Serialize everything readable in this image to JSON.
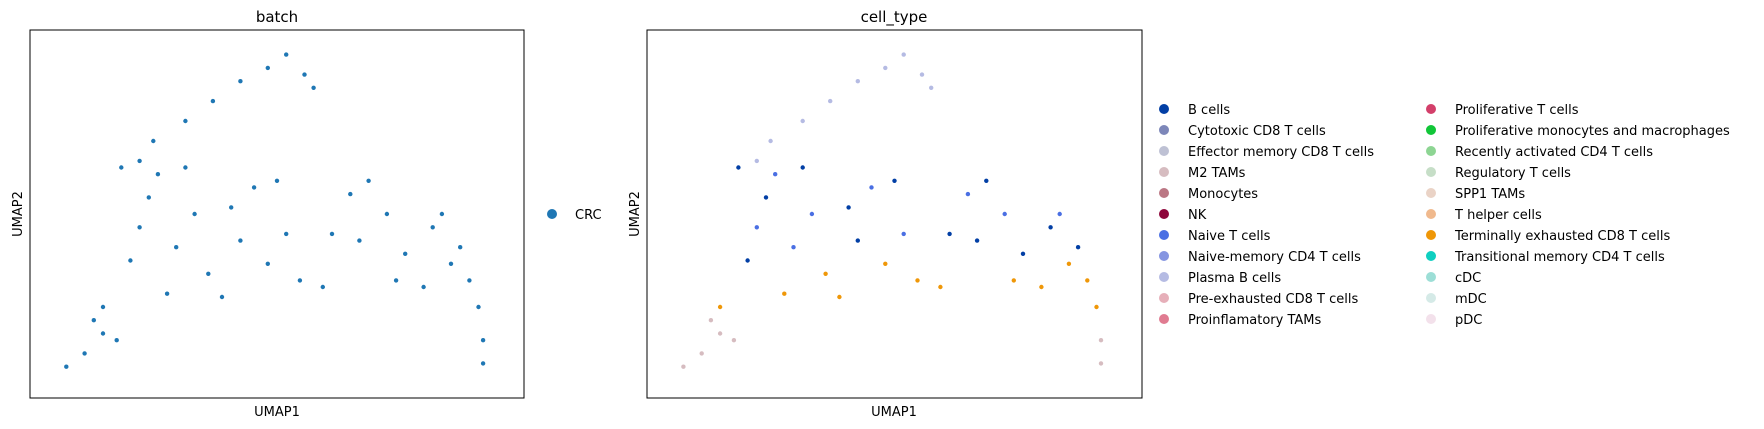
{
  "chart_data": [
    {
      "type": "scatter",
      "title": "batch",
      "xlabel": "UMAP1",
      "ylabel": "UMAP2",
      "xlim": [
        0,
        1
      ],
      "ylim": [
        0,
        1
      ],
      "legend_position": "right",
      "legend": [
        {
          "label": "CRC",
          "color": "#1f77b4"
        }
      ],
      "series": [
        {
          "name": "CRC",
          "color": "#1f77b4",
          "points": [
            [
              0.04,
              0.04
            ],
            [
              0.08,
              0.08
            ],
            [
              0.12,
              0.14
            ],
            [
              0.12,
              0.22
            ],
            [
              0.18,
              0.36
            ],
            [
              0.2,
              0.46
            ],
            [
              0.22,
              0.55
            ],
            [
              0.24,
              0.62
            ],
            [
              0.3,
              0.64
            ],
            [
              0.32,
              0.5
            ],
            [
              0.35,
              0.32
            ],
            [
              0.38,
              0.25
            ],
            [
              0.42,
              0.42
            ],
            [
              0.45,
              0.58
            ],
            [
              0.5,
              0.6
            ],
            [
              0.52,
              0.44
            ],
            [
              0.55,
              0.3
            ],
            [
              0.6,
              0.28
            ],
            [
              0.62,
              0.44
            ],
            [
              0.66,
              0.56
            ],
            [
              0.7,
              0.6
            ],
            [
              0.74,
              0.5
            ],
            [
              0.78,
              0.38
            ],
            [
              0.82,
              0.28
            ],
            [
              0.84,
              0.46
            ],
            [
              0.86,
              0.5
            ],
            [
              0.9,
              0.4
            ],
            [
              0.92,
              0.3
            ],
            [
              0.94,
              0.22
            ],
            [
              0.95,
              0.12
            ],
            [
              0.95,
              0.05
            ],
            [
              0.2,
              0.66
            ],
            [
              0.23,
              0.72
            ],
            [
              0.3,
              0.78
            ],
            [
              0.36,
              0.84
            ],
            [
              0.42,
              0.9
            ],
            [
              0.48,
              0.94
            ],
            [
              0.52,
              0.98
            ],
            [
              0.56,
              0.92
            ],
            [
              0.58,
              0.88
            ],
            [
              0.16,
              0.64
            ],
            [
              0.28,
              0.4
            ],
            [
              0.4,
              0.52
            ],
            [
              0.48,
              0.35
            ],
            [
              0.68,
              0.42
            ],
            [
              0.76,
              0.3
            ],
            [
              0.88,
              0.35
            ],
            [
              0.26,
              0.26
            ],
            [
              0.1,
              0.18
            ],
            [
              0.15,
              0.12
            ]
          ]
        }
      ]
    },
    {
      "type": "scatter",
      "title": "cell_type",
      "xlabel": "UMAP1",
      "ylabel": "UMAP2",
      "xlim": [
        0,
        1
      ],
      "ylim": [
        0,
        1
      ],
      "legend_position": "right",
      "legend": [
        {
          "label": "B cells",
          "color": "#023fa5"
        },
        {
          "label": "Cytotoxic CD8 T cells",
          "color": "#7d87b9"
        },
        {
          "label": "Effector memory CD8 T cells",
          "color": "#bec1d4"
        },
        {
          "label": "M2 TAMs",
          "color": "#d6bcc0"
        },
        {
          "label": "Monocytes",
          "color": "#bb7784"
        },
        {
          "label": "NK",
          "color": "#8e063b"
        },
        {
          "label": "Naive T cells",
          "color": "#4a6fe3"
        },
        {
          "label": "Naive-memory CD4 T cells",
          "color": "#8595e1"
        },
        {
          "label": "Plasma B cells",
          "color": "#b5bbe3"
        },
        {
          "label": "Pre-exhausted CD8 T cells",
          "color": "#e6afb9"
        },
        {
          "label": "Proinflamatory TAMs",
          "color": "#e07b91"
        },
        {
          "label": "Proliferative T cells",
          "color": "#d33f6a"
        },
        {
          "label": "Proliferative monocytes and macrophages",
          "color": "#11c638"
        },
        {
          "label": "Recently activated CD4 T cells",
          "color": "#8dd593"
        },
        {
          "label": "Regulatory T cells",
          "color": "#c6dec7"
        },
        {
          "label": "SPP1 TAMs",
          "color": "#ead3c6"
        },
        {
          "label": "T helper cells",
          "color": "#f0b98d"
        },
        {
          "label": "Terminally exhausted CD8 T cells",
          "color": "#ef9708"
        },
        {
          "label": "Transitional memory CD4 T cells",
          "color": "#0fcfc0"
        },
        {
          "label": "cDC",
          "color": "#9cded6"
        },
        {
          "label": "mDC",
          "color": "#d5eae7"
        },
        {
          "label": "pDC",
          "color": "#f3e1eb"
        }
      ]
    }
  ]
}
